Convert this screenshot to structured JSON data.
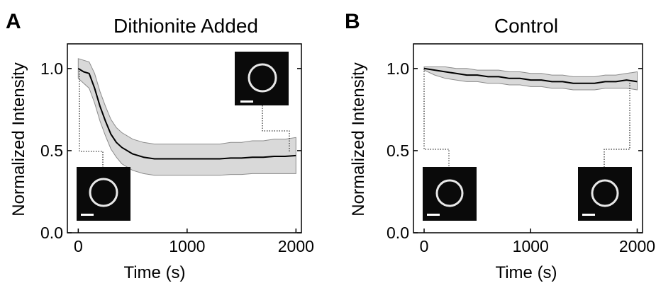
{
  "colors": {
    "line": "#000000",
    "band": "#d9d9d9",
    "band_edge": "#8c8c8c",
    "inset_bg": "#0a0a0a",
    "ring": "#e8e8e8"
  },
  "chart_data": [
    {
      "type": "line",
      "panel": "A",
      "title": "Dithionite Added",
      "xlabel": "Time (s)",
      "ylabel": "Normalized Intensity",
      "xlim": [
        -100,
        2050
      ],
      "ylim": [
        0,
        1.15
      ],
      "xticks": [
        0,
        1000,
        2000
      ],
      "yticks": [
        0.0,
        0.5,
        1.0
      ],
      "xtick_labels": [
        "0",
        "1000",
        "2000"
      ],
      "ytick_labels": [
        "0.0",
        "0.5",
        "1.0"
      ],
      "series": [
        {
          "x": [
            0,
            50,
            100,
            150,
            200,
            250,
            300,
            350,
            400,
            500,
            600,
            700,
            800,
            900,
            1000,
            1100,
            1200,
            1300,
            1400,
            1500,
            1600,
            1700,
            1800,
            1900,
            2000
          ],
          "y": [
            1.0,
            0.98,
            0.97,
            0.88,
            0.77,
            0.68,
            0.6,
            0.55,
            0.52,
            0.48,
            0.46,
            0.45,
            0.45,
            0.45,
            0.45,
            0.45,
            0.45,
            0.45,
            0.455,
            0.455,
            0.46,
            0.46,
            0.465,
            0.465,
            0.47
          ],
          "lower": [
            0.94,
            0.91,
            0.88,
            0.79,
            0.68,
            0.59,
            0.51,
            0.46,
            0.42,
            0.38,
            0.36,
            0.35,
            0.35,
            0.35,
            0.35,
            0.35,
            0.35,
            0.35,
            0.355,
            0.355,
            0.36,
            0.36,
            0.36,
            0.36,
            0.36
          ],
          "upper": [
            1.06,
            1.05,
            1.04,
            0.97,
            0.86,
            0.77,
            0.69,
            0.64,
            0.61,
            0.57,
            0.55,
            0.54,
            0.54,
            0.54,
            0.54,
            0.54,
            0.54,
            0.54,
            0.55,
            0.55,
            0.56,
            0.56,
            0.57,
            0.57,
            0.58
          ]
        }
      ],
      "insets": [
        {
          "anchor_x": 0,
          "anchor_y": 1.0,
          "position": "bottom-left",
          "scale_bar": true
        },
        {
          "anchor_x": 2000,
          "anchor_y": 0.47,
          "position": "top-right",
          "scale_bar": true
        }
      ]
    },
    {
      "type": "line",
      "panel": "B",
      "title": "Control",
      "xlabel": "Time (s)",
      "ylabel": "Normalized Intensity",
      "xlim": [
        -100,
        2050
      ],
      "ylim": [
        0,
        1.15
      ],
      "xticks": [
        0,
        1000,
        2000
      ],
      "yticks": [
        0.0,
        0.5,
        1.0
      ],
      "xtick_labels": [
        "0",
        "1000",
        "2000"
      ],
      "ytick_labels": [
        "0.0",
        "0.5",
        "1.0"
      ],
      "series": [
        {
          "x": [
            0,
            100,
            200,
            300,
            400,
            500,
            600,
            700,
            800,
            900,
            1000,
            1100,
            1200,
            1300,
            1400,
            1500,
            1600,
            1700,
            1800,
            1900,
            2000
          ],
          "y": [
            1.0,
            0.99,
            0.98,
            0.97,
            0.96,
            0.96,
            0.95,
            0.95,
            0.94,
            0.94,
            0.93,
            0.93,
            0.92,
            0.92,
            0.91,
            0.91,
            0.91,
            0.92,
            0.92,
            0.93,
            0.92
          ],
          "lower": [
            0.99,
            0.96,
            0.94,
            0.93,
            0.92,
            0.92,
            0.91,
            0.91,
            0.9,
            0.9,
            0.89,
            0.89,
            0.88,
            0.88,
            0.87,
            0.87,
            0.87,
            0.88,
            0.88,
            0.88,
            0.87
          ],
          "upper": [
            1.01,
            1.01,
            1.01,
            1.0,
            1.0,
            0.99,
            0.99,
            0.99,
            0.98,
            0.98,
            0.97,
            0.97,
            0.96,
            0.96,
            0.95,
            0.95,
            0.95,
            0.96,
            0.96,
            0.97,
            0.98
          ]
        }
      ],
      "insets": [
        {
          "anchor_x": 0,
          "anchor_y": 1.0,
          "position": "bottom-left",
          "scale_bar": true
        },
        {
          "anchor_x": 2000,
          "anchor_y": 0.92,
          "position": "bottom-right",
          "scale_bar": true
        }
      ]
    }
  ]
}
